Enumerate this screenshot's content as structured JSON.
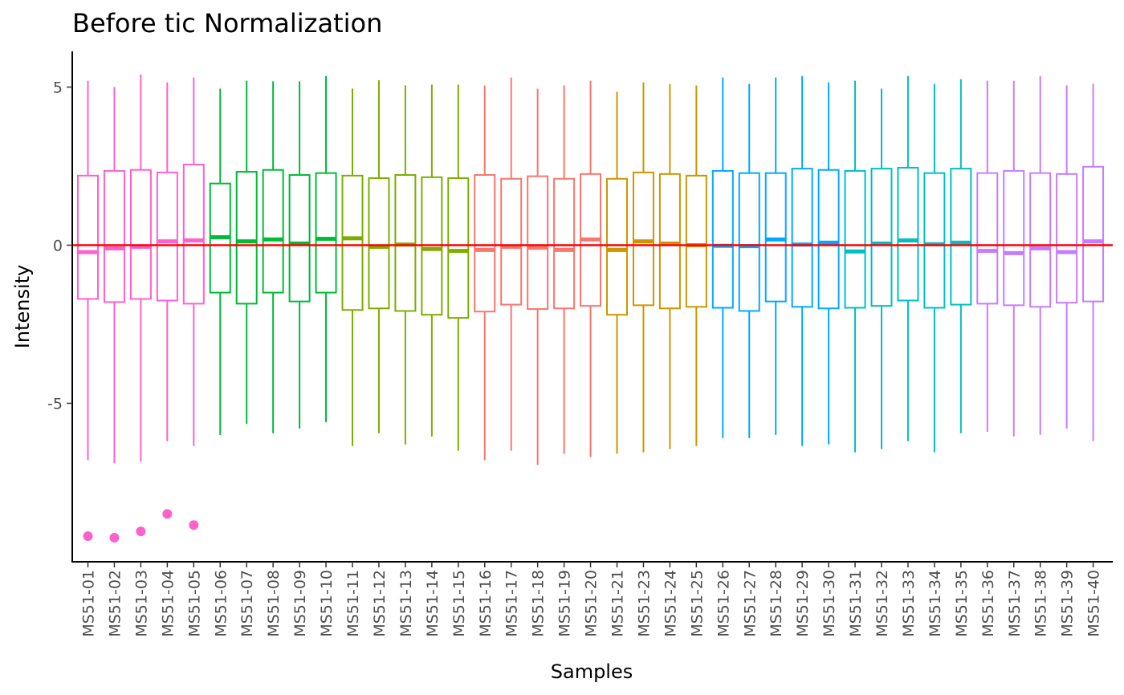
{
  "chart_data": {
    "type": "box",
    "title": "Before tic Normalization",
    "xlabel": "Samples",
    "ylabel": "Intensity",
    "ylim": [
      -10,
      6
    ],
    "y_ticks": [
      -5,
      0,
      5
    ],
    "y_tick_labels": [
      "-5",
      "0",
      "5"
    ],
    "reference_line": {
      "y": 0,
      "color": "#ff0000"
    },
    "grid": false,
    "legend": "none",
    "samples": [
      {
        "name": "MS51-01",
        "color": "#ff61cc",
        "q1": -1.7,
        "median": -0.22,
        "q3": 2.2,
        "lower": -6.8,
        "upper": 5.2,
        "outliers": [
          -9.2
        ]
      },
      {
        "name": "MS51-02",
        "color": "#ff61cc",
        "q1": -1.8,
        "median": -0.1,
        "q3": 2.35,
        "lower": -6.9,
        "upper": 5.0,
        "outliers": [
          -9.25
        ]
      },
      {
        "name": "MS51-03",
        "color": "#ff61cc",
        "q1": -1.7,
        "median": -0.05,
        "q3": 2.38,
        "lower": -6.85,
        "upper": 5.4,
        "outliers": [
          -9.05
        ]
      },
      {
        "name": "MS51-04",
        "color": "#ff61cc",
        "q1": -1.75,
        "median": 0.12,
        "q3": 2.3,
        "lower": -6.2,
        "upper": 5.15,
        "outliers": [
          -8.5
        ]
      },
      {
        "name": "MS51-05",
        "color": "#ff61cc",
        "q1": -1.85,
        "median": 0.15,
        "q3": 2.55,
        "lower": -6.35,
        "upper": 5.3,
        "outliers": [
          -8.85
        ]
      },
      {
        "name": "MS51-06",
        "color": "#00ba38",
        "q1": -1.5,
        "median": 0.25,
        "q3": 1.95,
        "lower": -6.0,
        "upper": 4.95,
        "outliers": []
      },
      {
        "name": "MS51-07",
        "color": "#00ba38",
        "q1": -1.85,
        "median": 0.12,
        "q3": 2.32,
        "lower": -5.65,
        "upper": 5.2,
        "outliers": []
      },
      {
        "name": "MS51-08",
        "color": "#00ba38",
        "q1": -1.5,
        "median": 0.18,
        "q3": 2.38,
        "lower": -5.95,
        "upper": 5.18,
        "outliers": []
      },
      {
        "name": "MS51-09",
        "color": "#00ba38",
        "q1": -1.78,
        "median": 0.05,
        "q3": 2.22,
        "lower": -5.8,
        "upper": 5.18,
        "outliers": []
      },
      {
        "name": "MS51-10",
        "color": "#00ba38",
        "q1": -1.5,
        "median": 0.2,
        "q3": 2.28,
        "lower": -5.6,
        "upper": 5.35,
        "outliers": []
      },
      {
        "name": "MS51-11",
        "color": "#7cae00",
        "q1": -2.05,
        "median": 0.22,
        "q3": 2.2,
        "lower": -6.35,
        "upper": 4.95,
        "outliers": []
      },
      {
        "name": "MS51-12",
        "color": "#7cae00",
        "q1": -2.0,
        "median": -0.05,
        "q3": 2.12,
        "lower": -5.95,
        "upper": 5.22,
        "outliers": []
      },
      {
        "name": "MS51-13",
        "color": "#7cae00",
        "q1": -2.08,
        "median": 0.02,
        "q3": 2.22,
        "lower": -6.3,
        "upper": 5.05,
        "outliers": []
      },
      {
        "name": "MS51-14",
        "color": "#7cae00",
        "q1": -2.2,
        "median": -0.12,
        "q3": 2.15,
        "lower": -6.05,
        "upper": 5.08,
        "outliers": []
      },
      {
        "name": "MS51-15",
        "color": "#7cae00",
        "q1": -2.3,
        "median": -0.18,
        "q3": 2.12,
        "lower": -6.5,
        "upper": 5.08,
        "outliers": []
      },
      {
        "name": "MS51-16",
        "color": "#f8766d",
        "q1": -2.1,
        "median": -0.15,
        "q3": 2.22,
        "lower": -6.8,
        "upper": 5.05,
        "outliers": []
      },
      {
        "name": "MS51-17",
        "color": "#f8766d",
        "q1": -1.88,
        "median": -0.05,
        "q3": 2.1,
        "lower": -6.5,
        "upper": 5.3,
        "outliers": []
      },
      {
        "name": "MS51-18",
        "color": "#f8766d",
        "q1": -2.02,
        "median": -0.08,
        "q3": 2.18,
        "lower": -6.95,
        "upper": 4.95,
        "outliers": []
      },
      {
        "name": "MS51-19",
        "color": "#f8766d",
        "q1": -2.0,
        "median": -0.15,
        "q3": 2.1,
        "lower": -6.6,
        "upper": 5.05,
        "outliers": []
      },
      {
        "name": "MS51-20",
        "color": "#f8766d",
        "q1": -1.92,
        "median": 0.18,
        "q3": 2.25,
        "lower": -6.7,
        "upper": 5.2,
        "outliers": []
      },
      {
        "name": "MS51-21",
        "color": "#cd9600",
        "q1": -2.2,
        "median": -0.15,
        "q3": 2.1,
        "lower": -6.6,
        "upper": 4.85,
        "outliers": []
      },
      {
        "name": "MS51-23",
        "color": "#cd9600",
        "q1": -1.9,
        "median": 0.12,
        "q3": 2.3,
        "lower": -6.55,
        "upper": 5.15,
        "outliers": []
      },
      {
        "name": "MS51-24",
        "color": "#cd9600",
        "q1": -2.0,
        "median": 0.05,
        "q3": 2.25,
        "lower": -6.45,
        "upper": 5.1,
        "outliers": []
      },
      {
        "name": "MS51-25",
        "color": "#cd9600",
        "q1": -1.95,
        "median": 0.0,
        "q3": 2.2,
        "lower": -6.35,
        "upper": 5.05,
        "outliers": []
      },
      {
        "name": "MS51-26",
        "color": "#00a9ff",
        "q1": -1.98,
        "median": -0.02,
        "q3": 2.35,
        "lower": -6.1,
        "upper": 5.3,
        "outliers": []
      },
      {
        "name": "MS51-27",
        "color": "#00a9ff",
        "q1": -2.08,
        "median": -0.03,
        "q3": 2.28,
        "lower": -6.1,
        "upper": 5.1,
        "outliers": []
      },
      {
        "name": "MS51-28",
        "color": "#00a9ff",
        "q1": -1.78,
        "median": 0.18,
        "q3": 2.28,
        "lower": -6.0,
        "upper": 5.3,
        "outliers": []
      },
      {
        "name": "MS51-29",
        "color": "#00a9ff",
        "q1": -1.95,
        "median": 0.02,
        "q3": 2.42,
        "lower": -6.35,
        "upper": 5.35,
        "outliers": []
      },
      {
        "name": "MS51-30",
        "color": "#00a9ff",
        "q1": -2.0,
        "median": 0.08,
        "q3": 2.38,
        "lower": -6.3,
        "upper": 5.15,
        "outliers": []
      },
      {
        "name": "MS51-31",
        "color": "#00bfc4",
        "q1": -1.98,
        "median": -0.2,
        "q3": 2.35,
        "lower": -6.55,
        "upper": 5.2,
        "outliers": []
      },
      {
        "name": "MS51-32",
        "color": "#00bfc4",
        "q1": -1.92,
        "median": 0.05,
        "q3": 2.42,
        "lower": -6.45,
        "upper": 4.95,
        "outliers": []
      },
      {
        "name": "MS51-33",
        "color": "#00bfc4",
        "q1": -1.75,
        "median": 0.15,
        "q3": 2.45,
        "lower": -6.2,
        "upper": 5.35,
        "outliers": []
      },
      {
        "name": "MS51-34",
        "color": "#00bfc4",
        "q1": -1.98,
        "median": 0.03,
        "q3": 2.28,
        "lower": -6.55,
        "upper": 5.1,
        "outliers": []
      },
      {
        "name": "MS51-35",
        "color": "#00bfc4",
        "q1": -1.88,
        "median": 0.08,
        "q3": 2.42,
        "lower": -5.95,
        "upper": 5.25,
        "outliers": []
      },
      {
        "name": "MS51-36",
        "color": "#c77cff",
        "q1": -1.85,
        "median": -0.18,
        "q3": 2.28,
        "lower": -5.9,
        "upper": 5.2,
        "outliers": []
      },
      {
        "name": "MS51-37",
        "color": "#c77cff",
        "q1": -1.9,
        "median": -0.25,
        "q3": 2.35,
        "lower": -6.05,
        "upper": 5.2,
        "outliers": []
      },
      {
        "name": "MS51-38",
        "color": "#c77cff",
        "q1": -1.95,
        "median": -0.1,
        "q3": 2.28,
        "lower": -6.0,
        "upper": 5.35,
        "outliers": []
      },
      {
        "name": "MS51-39",
        "color": "#c77cff",
        "q1": -1.82,
        "median": -0.22,
        "q3": 2.25,
        "lower": -5.8,
        "upper": 5.05,
        "outliers": []
      },
      {
        "name": "MS51-40",
        "color": "#c77cff",
        "q1": -1.78,
        "median": 0.12,
        "q3": 2.48,
        "lower": -6.2,
        "upper": 5.1,
        "outliers": []
      }
    ]
  }
}
